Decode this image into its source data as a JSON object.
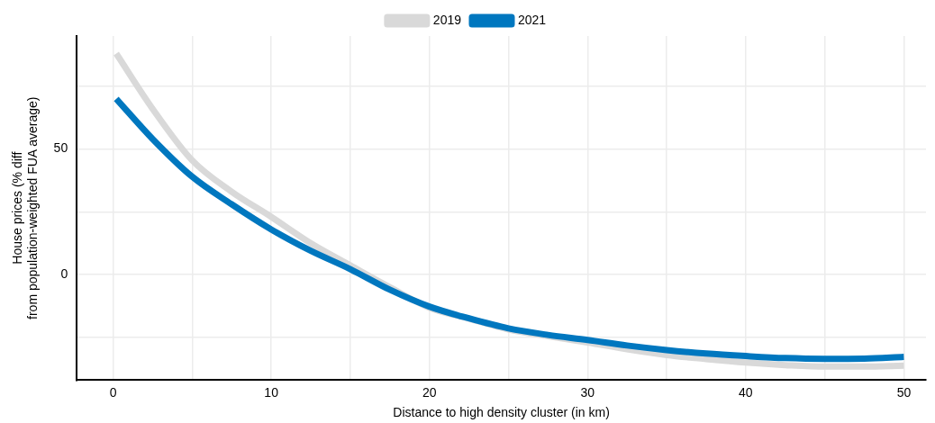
{
  "chart_data": {
    "type": "line",
    "xlabel": "Distance to high density cluster (in km)",
    "ylabel": "House prices (% diff from population-weighted FUA average)",
    "legend": "top",
    "grid": true,
    "marker": "none",
    "line_style": "solid",
    "xlim": [
      -2.3,
      51.4
    ],
    "ylim": [
      -42,
      95
    ],
    "xticks": [
      0,
      {
        "value": 5,
        "label": null
      },
      10,
      {
        "value": 15,
        "label": null
      },
      20,
      {
        "value": 25,
        "label": null
      },
      30,
      {
        "value": 35,
        "label": null
      },
      40,
      {
        "value": 45,
        "label": null
      },
      50
    ],
    "yticks": [
      {
        "value": -25,
        "label": null
      },
      0,
      {
        "value": 25,
        "label": null
      },
      50,
      {
        "value": 75,
        "label": null
      }
    ],
    "x": [
      0.2,
      2.5,
      5,
      7.5,
      10,
      12.5,
      15,
      17.5,
      20,
      22.5,
      25,
      27.5,
      30,
      32.5,
      35,
      37.5,
      40,
      42.5,
      45,
      47.5,
      50
    ],
    "series": [
      {
        "name": "2019",
        "color": "#d9d9d9",
        "values": [
          88,
          66,
          45.5,
          33,
          23,
          12.5,
          3.7,
          -5,
          -13.2,
          -17.5,
          -21.8,
          -24.5,
          -27,
          -29.7,
          -32,
          -33.6,
          -35,
          -36,
          -36.6,
          -36.6,
          -36.2
        ]
      },
      {
        "name": "2021",
        "color": "#0077bf",
        "values": [
          70,
          54,
          39,
          28,
          18,
          9.5,
          2.2,
          -6,
          -12.7,
          -17.4,
          -21.4,
          -24,
          -26,
          -28.2,
          -30,
          -31.4,
          -32.4,
          -33.2,
          -33.5,
          -33.4,
          -32.7
        ]
      }
    ]
  }
}
